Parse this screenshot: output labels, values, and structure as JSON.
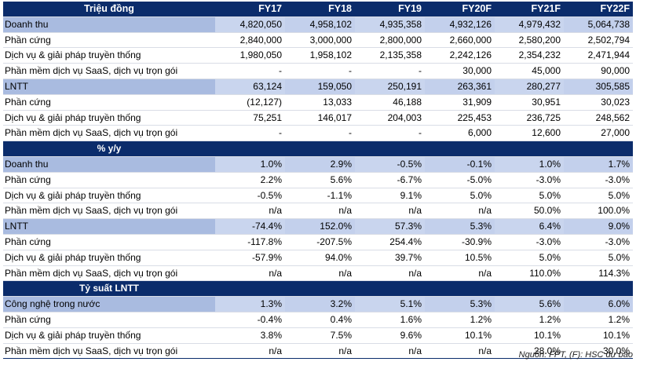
{
  "header": {
    "label": "Triệu đồng",
    "years": [
      "FY17",
      "FY18",
      "FY19",
      "FY20F",
      "FY21F",
      "FY22F"
    ]
  },
  "rows": [
    {
      "kind": "main",
      "label": "Doanh thu",
      "values": [
        "4,820,050",
        "4,958,102",
        "4,935,358",
        "4,932,126",
        "4,979,432",
        "5,064,738"
      ]
    },
    {
      "kind": "sub",
      "label": "Phần cứng",
      "values": [
        "2,840,000",
        "3,000,000",
        "2,800,000",
        "2,660,000",
        "2,580,200",
        "2,502,794"
      ]
    },
    {
      "kind": "sub",
      "label": "Dịch vụ & giải pháp truyền thống",
      "values": [
        "1,980,050",
        "1,958,102",
        "2,135,358",
        "2,242,126",
        "2,354,232",
        "2,471,944"
      ]
    },
    {
      "kind": "sub",
      "label": "Phần mềm dịch vụ SaaS, dịch vụ trọn gói",
      "values": [
        "-",
        "-",
        "-",
        "30,000",
        "45,000",
        "90,000"
      ]
    },
    {
      "kind": "main",
      "label": "LNTT",
      "values": [
        "63,124",
        "159,050",
        "250,191",
        "263,361",
        "280,277",
        "305,585"
      ]
    },
    {
      "kind": "sub",
      "label": "Phần cứng",
      "values": [
        "(12,127)",
        "13,033",
        "46,188",
        "31,909",
        "30,951",
        "30,023"
      ]
    },
    {
      "kind": "sub",
      "label": "Dịch vụ & giải pháp truyền thống",
      "values": [
        "75,251",
        "146,017",
        "204,003",
        "225,453",
        "236,725",
        "248,562"
      ]
    },
    {
      "kind": "sub",
      "label": "Phần mềm dịch vụ SaaS, dịch vụ trọn gói",
      "values": [
        "-",
        "-",
        "-",
        "6,000",
        "12,600",
        "27,000"
      ]
    },
    {
      "kind": "section",
      "label": "% y/y"
    },
    {
      "kind": "main",
      "label": "Doanh thu",
      "values": [
        "1.0%",
        "2.9%",
        "-0.5%",
        "-0.1%",
        "1.0%",
        "1.7%"
      ]
    },
    {
      "kind": "sub",
      "label": "Phần cứng",
      "values": [
        "2.2%",
        "5.6%",
        "-6.7%",
        "-5.0%",
        "-3.0%",
        "-3.0%"
      ]
    },
    {
      "kind": "sub",
      "label": "Dịch vụ & giải pháp truyền thống",
      "values": [
        "-0.5%",
        "-1.1%",
        "9.1%",
        "5.0%",
        "5.0%",
        "5.0%"
      ]
    },
    {
      "kind": "sub",
      "label": "Phần mềm dịch vụ SaaS, dịch vụ trọn gói",
      "values": [
        "n/a",
        "n/a",
        "n/a",
        "n/a",
        "50.0%",
        "100.0%"
      ]
    },
    {
      "kind": "main",
      "label": "LNTT",
      "values": [
        "-74.4%",
        "152.0%",
        "57.3%",
        "5.3%",
        "6.4%",
        "9.0%"
      ]
    },
    {
      "kind": "sub",
      "label": "Phần cứng",
      "values": [
        "-117.8%",
        "-207.5%",
        "254.4%",
        "-30.9%",
        "-3.0%",
        "-3.0%"
      ]
    },
    {
      "kind": "sub",
      "label": "Dịch vụ & giải pháp truyền thống",
      "values": [
        "-57.9%",
        "94.0%",
        "39.7%",
        "10.5%",
        "5.0%",
        "5.0%"
      ]
    },
    {
      "kind": "sub",
      "label": "Phần mềm dịch vụ SaaS, dịch vụ trọn gói",
      "values": [
        "n/a",
        "n/a",
        "n/a",
        "n/a",
        "110.0%",
        "114.3%"
      ]
    },
    {
      "kind": "section",
      "label": "Tỷ suất LNTT"
    },
    {
      "kind": "main",
      "label": "Công nghệ trong nước",
      "values": [
        "1.3%",
        "3.2%",
        "5.1%",
        "5.3%",
        "5.6%",
        "6.0%"
      ]
    },
    {
      "kind": "sub",
      "label": "Phần cứng",
      "values": [
        "-0.4%",
        "0.4%",
        "1.6%",
        "1.2%",
        "1.2%",
        "1.2%"
      ]
    },
    {
      "kind": "sub",
      "label": "Dịch vụ & giải pháp truyền thống",
      "values": [
        "3.8%",
        "7.5%",
        "9.6%",
        "10.1%",
        "10.1%",
        "10.1%"
      ]
    },
    {
      "kind": "sub",
      "label": "Phần mềm dịch vụ SaaS, dịch vụ trọn gói",
      "values": [
        "n/a",
        "n/a",
        "n/a",
        "n/a",
        "28.0%",
        "30.0%"
      ]
    }
  ],
  "source": "Nguồn: FPT, (F): HSC dự báo",
  "colors": {
    "header": "#0b2c6b",
    "main_row": "#a9bbe0",
    "main_row_values": "#c9d5ee"
  }
}
